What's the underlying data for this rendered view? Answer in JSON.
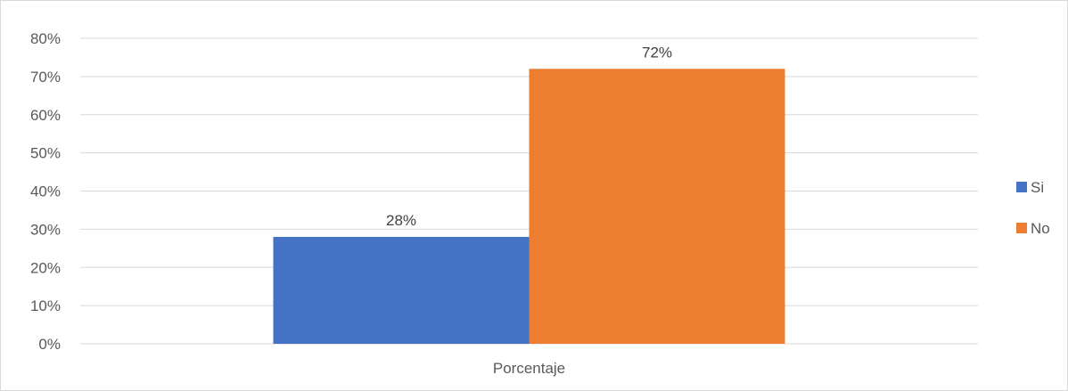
{
  "chart_data": {
    "type": "bar",
    "categories": [
      "Porcentaje"
    ],
    "series": [
      {
        "name": "Si",
        "values": [
          28
        ],
        "label": "28%",
        "color": "#4472C4"
      },
      {
        "name": "No",
        "values": [
          72
        ],
        "label": "72%",
        "color": "#ED7D31"
      }
    ],
    "ylim": [
      0,
      80
    ],
    "yticks": [
      "0%",
      "10%",
      "20%",
      "30%",
      "40%",
      "50%",
      "60%",
      "70%",
      "80%"
    ],
    "grid": true,
    "legend_position": "right",
    "title": "",
    "xlabel": "",
    "ylabel": ""
  }
}
